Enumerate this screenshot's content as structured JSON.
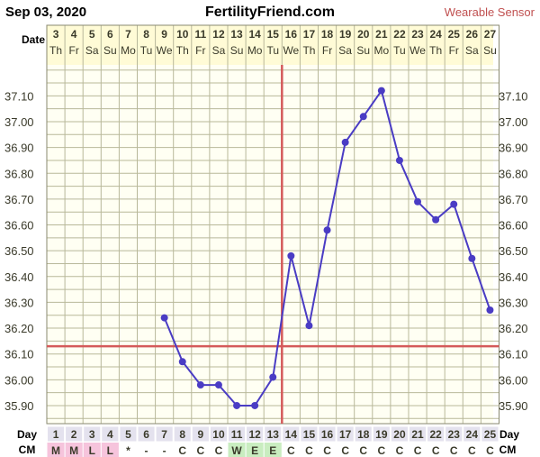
{
  "header": {
    "date": "Sep 03, 2020",
    "site": "FertilityFriend.com",
    "badge": "Wearable Sensor"
  },
  "labels": {
    "date_row": "Date",
    "day_row": "Day",
    "cm_row": "CM"
  },
  "colors": {
    "line": "#4a3cc4",
    "coverline": "#d45a5a",
    "ovulation": "#d45a5a",
    "grid": "#b8b89a",
    "background": "#fffff3",
    "date_strip": "#fffbd6",
    "text_dark": "#3a3a2a",
    "badge": "#c05050",
    "cm_pink": "#f6c4dc",
    "cm_green": "#c9edc0",
    "day_cell": "#e4e2ee"
  },
  "chart_data": {
    "type": "line",
    "dates": [
      "3",
      "4",
      "5",
      "6",
      "7",
      "8",
      "9",
      "10",
      "11",
      "12",
      "13",
      "14",
      "15",
      "16",
      "17",
      "18",
      "19",
      "20",
      "21",
      "22",
      "23",
      "24",
      "25",
      "26",
      "27"
    ],
    "weekdays": [
      "Th",
      "Fr",
      "Sa",
      "Su",
      "Mo",
      "Tu",
      "We",
      "Th",
      "Fr",
      "Sa",
      "Su",
      "Mo",
      "Tu",
      "We",
      "Th",
      "Fr",
      "Sa",
      "Su",
      "Mo",
      "Tu",
      "We",
      "Th",
      "Fr",
      "Sa",
      "Su"
    ],
    "cycle_days": [
      "1",
      "2",
      "3",
      "4",
      "5",
      "6",
      "7",
      "8",
      "9",
      "10",
      "11",
      "12",
      "13",
      "14",
      "15",
      "16",
      "17",
      "18",
      "19",
      "20",
      "21",
      "22",
      "23",
      "24",
      "25"
    ],
    "cm": [
      "M",
      "M",
      "L",
      "L",
      "*",
      "-",
      "-",
      "C",
      "C",
      "C",
      "W",
      "E",
      "E",
      "C",
      "C",
      "C",
      "C",
      "C",
      "C",
      "C",
      "C",
      "C",
      "C",
      "C",
      "C"
    ],
    "cm_colors": [
      "pink",
      "pink",
      "pink",
      "pink",
      "",
      "",
      "",
      "",
      "",
      "",
      "green",
      "green",
      "green",
      "",
      "",
      "",
      "",
      "",
      "",
      "",
      "",
      "",
      "",
      "",
      ""
    ],
    "temperatures": [
      null,
      null,
      null,
      null,
      null,
      null,
      36.24,
      36.07,
      35.98,
      35.98,
      35.9,
      35.9,
      36.01,
      36.48,
      36.21,
      36.58,
      36.92,
      37.02,
      37.12,
      36.85,
      36.69,
      36.62,
      36.68,
      36.47,
      36.27
    ],
    "y_ticks": [
      "37.10",
      "37.00",
      "36.90",
      "36.80",
      "36.70",
      "36.60",
      "36.50",
      "36.40",
      "36.30",
      "36.20",
      "36.10",
      "36.00",
      "35.90"
    ],
    "ylim": [
      35.83,
      37.22
    ],
    "coverline": 36.13,
    "ovulation_day": 13
  }
}
